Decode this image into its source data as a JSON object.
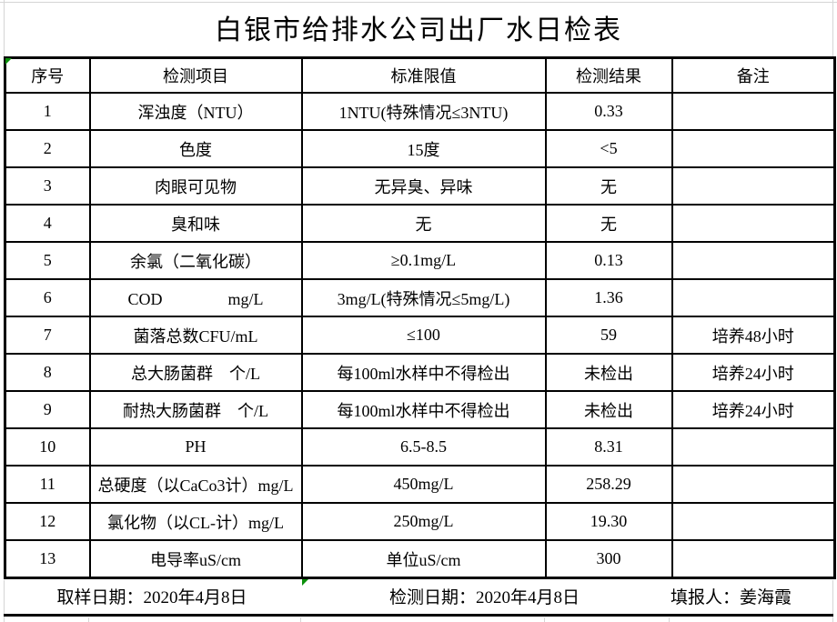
{
  "title": "白银市给排水公司出厂水日检表",
  "table": {
    "headers": [
      "序号",
      "检测项目",
      "标准限值",
      "检测结果",
      "备注"
    ],
    "column_keys": [
      "no",
      "item",
      "limit",
      "result",
      "note"
    ],
    "rows": [
      {
        "no": "1",
        "item": "浑浊度（NTU）",
        "limit": "1NTU(特殊情况≤3NTU)",
        "result": "0.33",
        "note": ""
      },
      {
        "no": "2",
        "item": "色度",
        "limit": "15度",
        "result": "<5",
        "note": ""
      },
      {
        "no": "3",
        "item": "肉眼可见物",
        "limit": "无异臭、异味",
        "result": "无",
        "note": ""
      },
      {
        "no": "4",
        "item": "臭和味",
        "limit": "无",
        "result": "无",
        "note": ""
      },
      {
        "no": "5",
        "item": "余氯（二氧化碳）",
        "limit": "≥0.1mg/L",
        "result": "0.13",
        "note": ""
      },
      {
        "no": "6",
        "item": "COD　　　　mg/L",
        "limit": "3mg/L(特殊情况≤5mg/L)",
        "result": "1.36",
        "note": ""
      },
      {
        "no": "7",
        "item": "菌落总数CFU/mL",
        "limit": "≤100",
        "result": "59",
        "note": "培养48小时"
      },
      {
        "no": "8",
        "item": "总大肠菌群　个/L",
        "limit": "每100ml水样中不得检出",
        "result": "未检出",
        "note": "培养24小时"
      },
      {
        "no": "9",
        "item": "耐热大肠菌群　个/L",
        "limit": "每100ml水样中不得检出",
        "result": "未检出",
        "note": "培养24小时"
      },
      {
        "no": "10",
        "item": "PH",
        "limit": "6.5-8.5",
        "result": "8.31",
        "note": ""
      },
      {
        "no": "11",
        "item": "总硬度（以CaCo3计）mg/L",
        "limit": "450mg/L",
        "result": "258.29",
        "note": ""
      },
      {
        "no": "12",
        "item": "氯化物（以CL-计）mg/L",
        "limit": "250mg/L",
        "result": "19.30",
        "note": ""
      },
      {
        "no": "13",
        "item": "电导率uS/cm",
        "limit": "单位uS/cm",
        "result": "300",
        "note": ""
      }
    ]
  },
  "footer": {
    "sampling_date": "取样日期：2020年4月8日",
    "test_date": "检测日期：2020年4月8日",
    "reporter": "填报人：姜海霞"
  },
  "colors": {
    "border": "#000000",
    "gridline": "#d5d5d5",
    "indicator_green": "#0b8f0b",
    "background": "#ffffff",
    "text": "#000000"
  }
}
